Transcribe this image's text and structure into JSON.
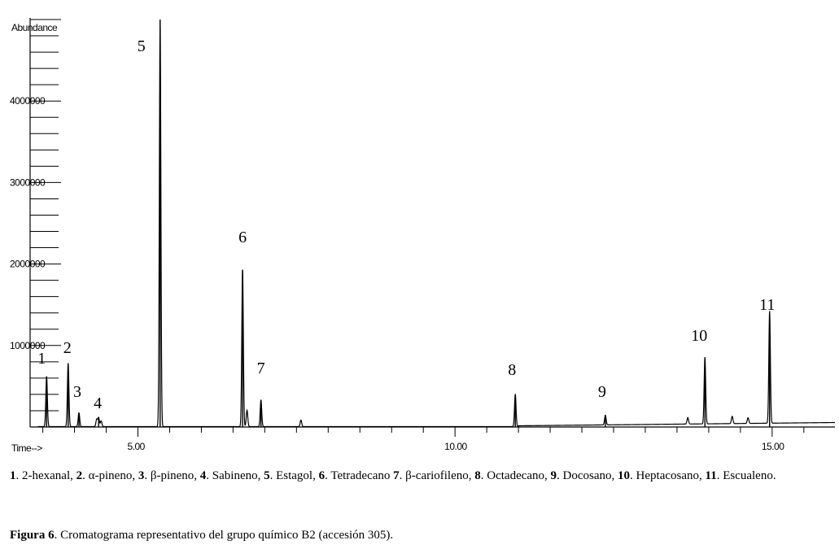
{
  "chart_data": {
    "type": "line",
    "title": "",
    "ylabel": "Abundance",
    "xlabel": "Time-->",
    "xlim": [
      3.3,
      15.99
    ],
    "ylim": [
      0,
      5000000
    ],
    "y_ticks": [
      1000000,
      2000000,
      3000000,
      4000000
    ],
    "y_tick_labels": [
      "1000000",
      "2000000",
      "3000000",
      "4000000"
    ],
    "x_ticks": [
      5.0,
      10.0,
      15.0
    ],
    "x_tick_labels": [
      "5.00",
      "10.00",
      "15.00"
    ],
    "grid": false,
    "peaks": [
      {
        "label": "1",
        "rt": 3.56,
        "abundance": 620000
      },
      {
        "label": "2",
        "rt": 3.9,
        "abundance": 780000
      },
      {
        "label": "3",
        "rt": 4.07,
        "abundance": 170000
      },
      {
        "label": "4",
        "rt": 4.38,
        "abundance": 110000
      },
      {
        "label": "5",
        "rt": 5.35,
        "abundance": 5000000
      },
      {
        "label": "6",
        "rt": 6.65,
        "abundance": 1930000
      },
      {
        "label": "7",
        "rt": 6.94,
        "abundance": 330000
      },
      {
        "label": "8",
        "rt": 10.95,
        "abundance": 400000
      },
      {
        "label": "9",
        "rt": 12.37,
        "abundance": 120000
      },
      {
        "label": "10",
        "rt": 13.94,
        "abundance": 820000
      },
      {
        "label": "11",
        "rt": 14.96,
        "abundance": 1380000
      }
    ],
    "minor_peaks": [
      {
        "rt": 4.35,
        "abundance": 90000
      },
      {
        "rt": 4.42,
        "abundance": 70000
      },
      {
        "rt": 6.72,
        "abundance": 200000
      },
      {
        "rt": 7.57,
        "abundance": 80000
      },
      {
        "rt": 13.67,
        "abundance": 80000
      },
      {
        "rt": 14.37,
        "abundance": 90000
      },
      {
        "rt": 14.62,
        "abundance": 70000
      }
    ]
  },
  "legend": {
    "entries": [
      {
        "num": "1",
        "name": "2-hexanal"
      },
      {
        "num": "2",
        "name": "α-pineno"
      },
      {
        "num": "3",
        "name": "β-pineno"
      },
      {
        "num": "4",
        "name": "Sabineno"
      },
      {
        "num": "5",
        "name": "Estagol"
      },
      {
        "num": "6",
        "name": "Tetradecano"
      },
      {
        "num": "7",
        "name": "β-cariofileno"
      },
      {
        "num": "8",
        "name": "Octadecano"
      },
      {
        "num": "9",
        "name": "Docosano"
      },
      {
        "num": "10",
        "name": "Heptacosano"
      },
      {
        "num": "11",
        "name": "Escualeno"
      }
    ]
  },
  "caption": {
    "label": "Figura 6",
    "text": ". Cromatograma representativo del grupo químico B2 (accesión 305)."
  }
}
